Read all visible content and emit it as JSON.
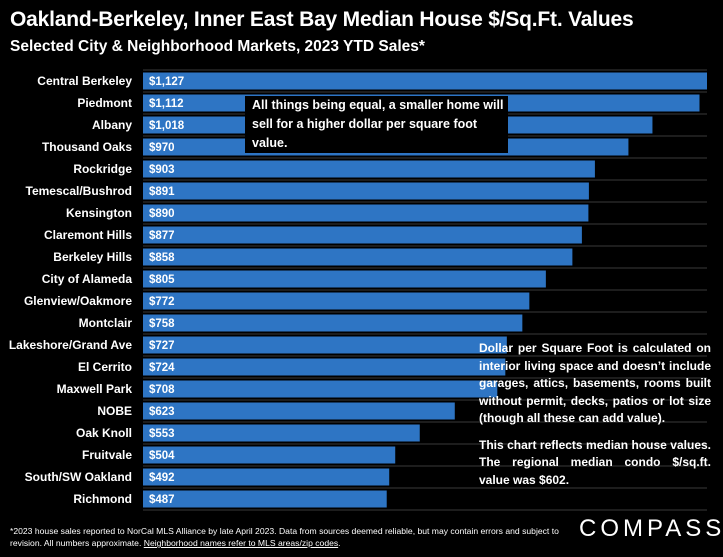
{
  "header": {
    "title": "Oakland-Berkeley, Inner East Bay Median House $/Sq.Ft. Values",
    "subtitle": "Selected City & Neighborhood Markets, 2023 YTD Sales*"
  },
  "notes": {
    "top": "All things being equal, a smaller home will sell for a higher dollar per square foot value.",
    "right_p1": "Dollar per Square Foot is calculated on interior living space and doesn’t include garages, attics, basements, rooms built without permit, decks, patios or lot size (though all these can add value).",
    "right_p2": "This chart reflects median house values. The regional median condo $/sq.ft. value was $602."
  },
  "footer": {
    "text": "*2023 house sales reported to NorCal MLS Alliance by late April 2023. Data from sources deemed reliable, but may contain errors and subject to revision. All numbers approximate.",
    "link": "Neighborhood names refer to MLS areas/zip codes",
    "link_suffix": ".",
    "logo": "COMPASS"
  },
  "colors": {
    "background": "#000000",
    "bar": "#2e75c4",
    "gridline": "#3a3a3a",
    "text": "#ffffff"
  },
  "chart_data": {
    "type": "bar",
    "orientation": "horizontal",
    "categories": [
      "Central Berkeley",
      "Piedmont",
      "Albany",
      "Thousand Oaks",
      "Rockridge",
      "Temescal/Bushrod",
      "Kensington",
      "Claremont Hills",
      "Berkeley Hills",
      "City of Alameda",
      "Glenview/Oakmore",
      "Montclair",
      "Lakeshore/Grand Ave",
      "El Cerrito",
      "Maxwell Park",
      "NOBE",
      "Oak Knoll",
      "Fruitvale",
      "South/SW Oakland",
      "Richmond"
    ],
    "values": [
      1127,
      1112,
      1018,
      970,
      903,
      891,
      890,
      877,
      858,
      805,
      772,
      758,
      727,
      724,
      708,
      623,
      553,
      504,
      492,
      487
    ],
    "value_labels": [
      "$1,127",
      "$1,112",
      "$1,018",
      "$970",
      "$903",
      "$891",
      "$890",
      "$877",
      "$858",
      "$805",
      "$772",
      "$758",
      "$727",
      "$724",
      "$708",
      "$623",
      "$553",
      "$504",
      "$492",
      "$487"
    ],
    "xlim": [
      0,
      1127
    ],
    "grid": true
  }
}
